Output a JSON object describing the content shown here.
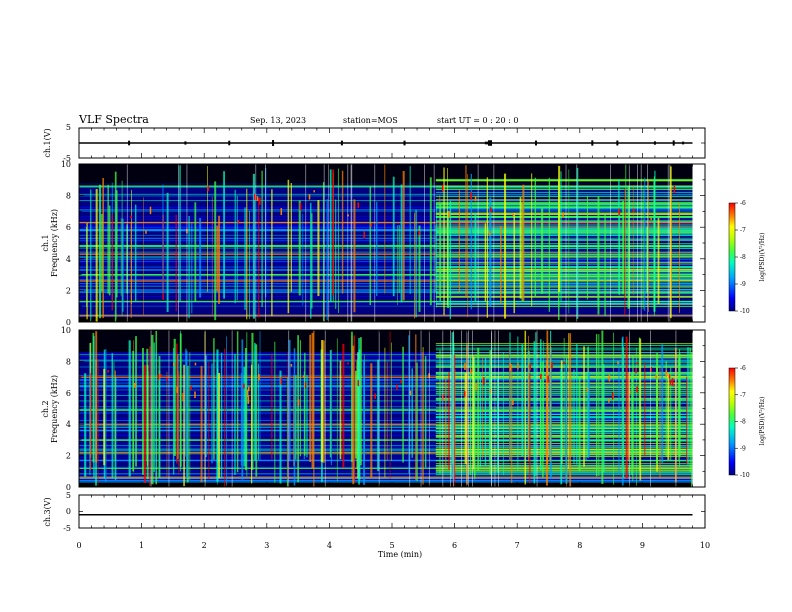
{
  "header": {
    "title": "VLF Spectra",
    "date": "Sep. 13, 2023",
    "station": "station=MOS",
    "start_ut": "start UT =  0 : 20 : 0"
  },
  "chart_data": [
    {
      "type": "line",
      "panel": "ch1-waveform",
      "ylabel": "ch.1(V)",
      "ylim": [
        -5,
        5
      ],
      "yticks": [
        "5",
        "-5"
      ],
      "xlim": [
        0,
        10
      ],
      "series": [
        {
          "x": [
            0,
            9.8
          ],
          "values": [
            0,
            0
          ]
        }
      ],
      "color": "#000000"
    },
    {
      "type": "heatmap",
      "panel": "ch1-spectrogram",
      "ylabel": "ch.1\nFrequency (kHz)",
      "ylim": [
        0,
        10
      ],
      "yticks": [
        "0",
        "2",
        "4",
        "6",
        "8",
        "10"
      ],
      "xlim": [
        0,
        10
      ],
      "data_end_min": 9.8,
      "regime_change_min": 5.7,
      "colorbar": {
        "label": "log(PSD)(V²/Hz)",
        "range": [
          -10,
          -6
        ],
        "ticks": [
          "-6",
          "-7",
          "-8",
          "-9",
          "-10"
        ]
      },
      "bands_khz": [
        0.4,
        1.3,
        1.9,
        2.6,
        3.0,
        3.3,
        4.3,
        4.8,
        5.8,
        6.3,
        8.6
      ],
      "colors": [
        "#000080",
        "#0000ff",
        "#00a0ff",
        "#00ffc0",
        "#40ff40",
        "#c0ff00",
        "#ffff00",
        "#ff8000",
        "#ff0000"
      ]
    },
    {
      "type": "heatmap",
      "panel": "ch2-spectrogram",
      "ylabel": "ch.2\nFrequency (kHz)",
      "ylim": [
        0,
        10
      ],
      "yticks": [
        "0",
        "2",
        "4",
        "6",
        "8",
        "10"
      ],
      "xlim": [
        0,
        10
      ],
      "data_end_min": 9.8,
      "regime_change_min": 5.7,
      "colorbar": {
        "label": "log(PSD)(V²/Hz)",
        "range": [
          -10,
          -6
        ],
        "ticks": [
          "-6",
          "-7",
          "-8",
          "-9",
          "-10"
        ]
      },
      "bands_khz": [
        0.6,
        1.2,
        1.7,
        2.2,
        3.0,
        3.6,
        4.0,
        4.9,
        6.4,
        7.0
      ],
      "colors": [
        "#000080",
        "#0000ff",
        "#00a0ff",
        "#00ffc0",
        "#40ff40",
        "#c0ff00",
        "#ffff00",
        "#ff8000",
        "#ff0000"
      ]
    },
    {
      "type": "line",
      "panel": "ch3-waveform",
      "ylabel": "ch.3(V)",
      "ylim": [
        -5,
        5
      ],
      "yticks": [
        "5",
        "0",
        "-5"
      ],
      "xlim": [
        0,
        10
      ],
      "series": [
        {
          "x": [
            0,
            9.8
          ],
          "values": [
            -1,
            -1
          ]
        }
      ],
      "color": "#000000"
    }
  ],
  "x_axis": {
    "label": "Time (min)",
    "ticks": [
      "0",
      "1",
      "2",
      "3",
      "4",
      "5",
      "6",
      "7",
      "8",
      "9",
      "10"
    ]
  }
}
